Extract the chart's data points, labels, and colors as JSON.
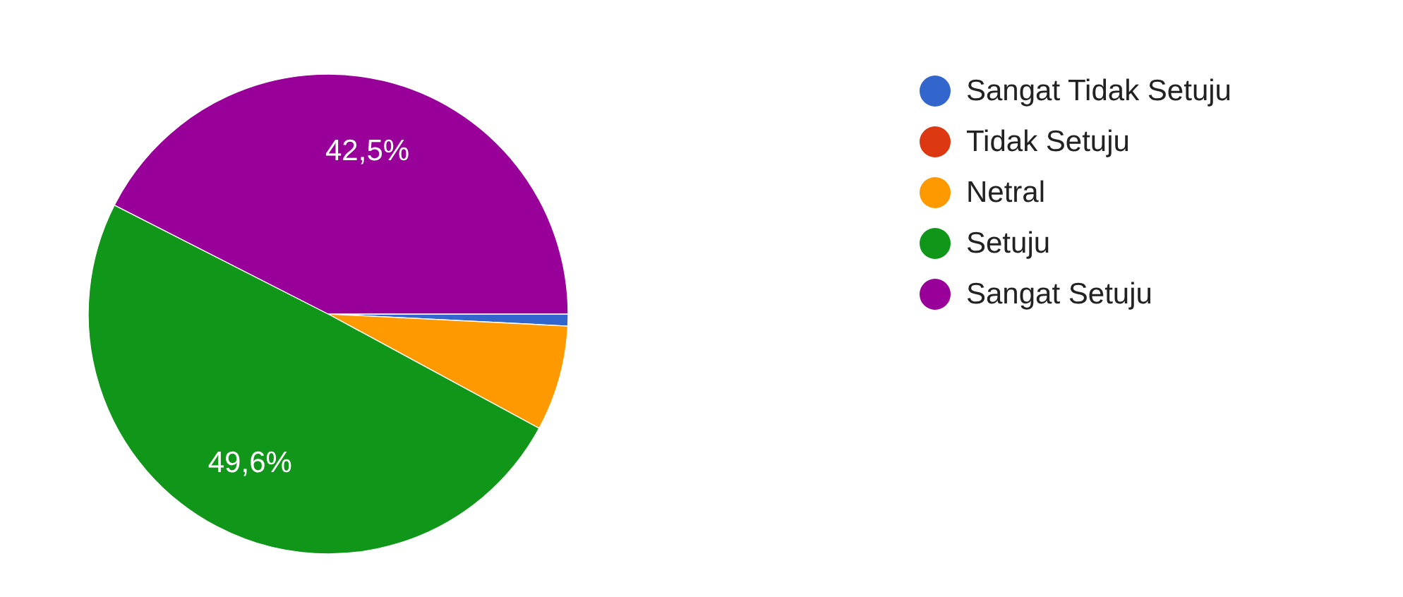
{
  "chart_data": {
    "type": "pie",
    "categories": [
      "Sangat Tidak Setuju",
      "Tidak Setuju",
      "Netral",
      "Setuju",
      "Sangat Setuju"
    ],
    "values": [
      0.8,
      0,
      7.1,
      49.6,
      42.5
    ],
    "colors": [
      "#3366cc",
      "#dc3912",
      "#ff9900",
      "#109618",
      "#990099"
    ],
    "value_labels": [
      null,
      null,
      null,
      "49,6%",
      "42,5%"
    ],
    "legend": "right"
  }
}
